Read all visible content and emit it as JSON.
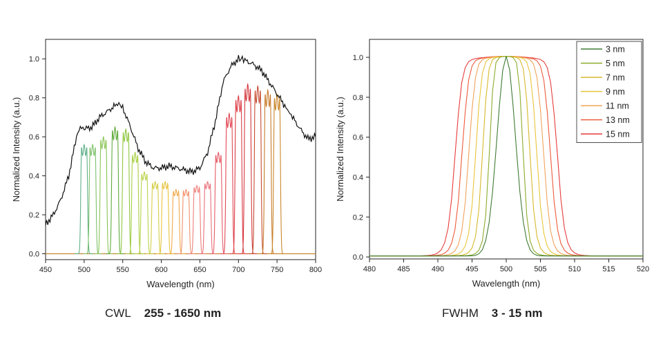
{
  "chart_data": [
    {
      "type": "line",
      "xlabel": "Wavelength (nm)",
      "ylabel": "Normalized Intensity (a.u.)",
      "xlim": [
        450,
        800
      ],
      "ylim": [
        -0.03,
        1.1
      ],
      "xticks": [
        "450",
        "500",
        "550",
        "600",
        "650",
        "700",
        "750",
        "800"
      ],
      "yticks": [
        "0.0",
        "0.2",
        "0.4",
        "0.6",
        "0.8",
        "1.0"
      ],
      "grid": false,
      "envelope": {
        "x": [
          450,
          460,
          470,
          480,
          490,
          495,
          500,
          510,
          520,
          530,
          540,
          545,
          550,
          560,
          570,
          580,
          590,
          600,
          610,
          620,
          630,
          640,
          650,
          660,
          670,
          680,
          690,
          700,
          705,
          710,
          720,
          730,
          740,
          750,
          760,
          765,
          770,
          780,
          790,
          800
        ],
        "y": [
          0.15,
          0.2,
          0.28,
          0.4,
          0.6,
          0.65,
          0.64,
          0.65,
          0.7,
          0.73,
          0.76,
          0.77,
          0.75,
          0.65,
          0.54,
          0.47,
          0.44,
          0.44,
          0.45,
          0.44,
          0.43,
          0.42,
          0.44,
          0.52,
          0.68,
          0.88,
          0.96,
          1.0,
          1.0,
          0.99,
          0.97,
          0.94,
          0.88,
          0.82,
          0.76,
          0.73,
          0.7,
          0.64,
          0.59,
          0.6
        ]
      },
      "filters": [
        {
          "center": 500,
          "peak": 0.56,
          "color": "#5fb08a"
        },
        {
          "center": 511,
          "peak": 0.56,
          "color": "#7cc06a"
        },
        {
          "center": 525,
          "peak": 0.6,
          "color": "#88c453"
        },
        {
          "center": 540,
          "peak": 0.65,
          "color": "#5faa3c"
        },
        {
          "center": 554,
          "peak": 0.64,
          "color": "#8fc73f"
        },
        {
          "center": 566,
          "peak": 0.52,
          "color": "#a9cf44"
        },
        {
          "center": 578,
          "peak": 0.42,
          "color": "#b9d34a"
        },
        {
          "center": 592,
          "peak": 0.37,
          "color": "#d5cd45"
        },
        {
          "center": 605,
          "peak": 0.37,
          "color": "#e8c23c"
        },
        {
          "center": 619,
          "peak": 0.33,
          "color": "#f2a94a"
        },
        {
          "center": 632,
          "peak": 0.33,
          "color": "#f2906a"
        },
        {
          "center": 646,
          "peak": 0.35,
          "color": "#ee7e78"
        },
        {
          "center": 660,
          "peak": 0.37,
          "color": "#ea6f7a"
        },
        {
          "center": 674,
          "peak": 0.52,
          "color": "#e65a66"
        },
        {
          "center": 688,
          "peak": 0.72,
          "color": "#e24855"
        },
        {
          "center": 700,
          "peak": 0.81,
          "color": "#dc3c46"
        },
        {
          "center": 712,
          "peak": 0.87,
          "color": "#d4383c"
        },
        {
          "center": 725,
          "peak": 0.86,
          "color": "#c64a30"
        },
        {
          "center": 738,
          "peak": 0.84,
          "color": "#c77a2a"
        },
        {
          "center": 750,
          "peak": 0.82,
          "color": "#c9862a"
        }
      ]
    },
    {
      "type": "line",
      "xlabel": "Wavelength (nm)",
      "ylabel": "Normalized Intensity (a.u.)",
      "xlim": [
        480,
        520
      ],
      "ylim": [
        -0.01,
        1.09
      ],
      "xticks": [
        "480",
        "485",
        "490",
        "495",
        "500",
        "505",
        "510",
        "515",
        "520"
      ],
      "yticks": [
        "0.0",
        "0.2",
        "0.4",
        "0.6",
        "0.8",
        "1.0"
      ],
      "grid": false,
      "legend_position": "top-right",
      "center": 500,
      "series": [
        {
          "name": "3 nm",
          "fwhm": 3,
          "color": "#3f7a33"
        },
        {
          "name": "5 nm",
          "fwhm": 5,
          "color": "#8aab2a"
        },
        {
          "name": "7 nm",
          "fwhm": 7,
          "color": "#d6b82a"
        },
        {
          "name": "9 nm",
          "fwhm": 9,
          "color": "#e8c43a"
        },
        {
          "name": "11 nm",
          "fwhm": 11,
          "color": "#f0a25a"
        },
        {
          "name": "13 nm",
          "fwhm": 13,
          "color": "#ec5a3a"
        },
        {
          "name": "15 nm",
          "fwhm": 15,
          "color": "#e63a3a"
        }
      ]
    }
  ],
  "captions": {
    "left_label": "CWL",
    "left_value": "255 - 1650 nm",
    "right_label": "FWHM",
    "right_value": "3 - 15 nm"
  }
}
